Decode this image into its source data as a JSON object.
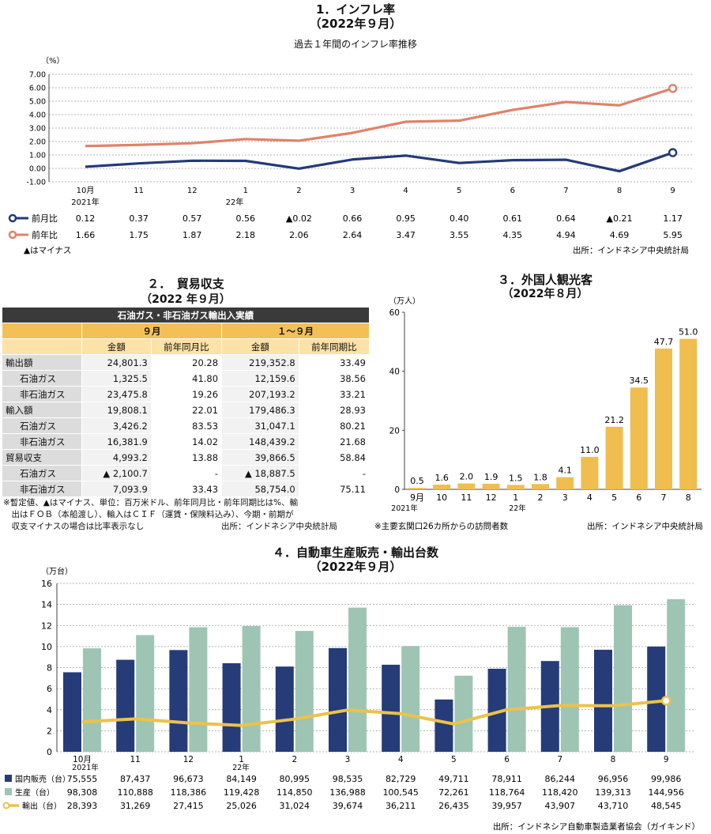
{
  "inflation": {
    "title": "1．インフレ率",
    "period": "（2022年９月）",
    "subtitle": "過去１年間のインフレ率推移",
    "unit": "（%）",
    "minus_note": "▲はマイナス",
    "source": "出所：インドネシア中央統計局",
    "year_2021": "2021年",
    "year_22": "22年",
    "chart_data": {
      "type": "line",
      "categories": [
        "10月",
        "11",
        "12",
        "1",
        "2",
        "3",
        "4",
        "5",
        "6",
        "7",
        "8",
        "9"
      ],
      "yticks": [
        "7.00",
        "6.00",
        "5.00",
        "4.00",
        "3.00",
        "2.00",
        "1.00",
        "0.00",
        "-1.00"
      ],
      "ylim": [
        -1,
        7
      ],
      "series": [
        {
          "name": "前月比",
          "color": "#243a78",
          "values": [
            0.12,
            0.37,
            0.57,
            0.56,
            -0.02,
            0.66,
            0.95,
            0.4,
            0.61,
            0.64,
            -0.21,
            1.17
          ],
          "labels": [
            "0.12",
            "0.37",
            "0.57",
            "0.56",
            "▲0.02",
            "0.66",
            "0.95",
            "0.40",
            "0.61",
            "0.64",
            "▲0.21",
            "1.17"
          ]
        },
        {
          "name": "前年比",
          "color": "#e0826a",
          "values": [
            1.66,
            1.75,
            1.87,
            2.18,
            2.06,
            2.64,
            3.47,
            3.55,
            4.35,
            4.94,
            4.69,
            5.95
          ],
          "labels": [
            "1.66",
            "1.75",
            "1.87",
            "2.18",
            "2.06",
            "2.64",
            "3.47",
            "3.55",
            "4.35",
            "4.94",
            "4.69",
            "5.95"
          ]
        }
      ]
    }
  },
  "trade": {
    "title": "２．　貿易収支",
    "period": "（2022 年９月）",
    "banner": "石油ガス・非石油ガス輸出入実績",
    "col_sep": "９月",
    "col_ytd": "１～９月",
    "h_amount": "金額",
    "h_mom": "前年同月比",
    "h_yoy": "前年同期比",
    "rows": [
      {
        "label": "輸出額",
        "indent": false,
        "v": [
          "24,801.3",
          "20.28",
          "219,352.8",
          "33.49"
        ]
      },
      {
        "label": "石油ガス",
        "indent": true,
        "v": [
          "1,325.5",
          "41.80",
          "12,159.6",
          "38.56"
        ]
      },
      {
        "label": "非石油ガス",
        "indent": true,
        "v": [
          "23,475.8",
          "19.26",
          "207,193.2",
          "33.21"
        ]
      },
      {
        "label": "輸入額",
        "indent": false,
        "v": [
          "19,808.1",
          "22.01",
          "179,486.3",
          "28.93"
        ]
      },
      {
        "label": "石油ガス",
        "indent": true,
        "v": [
          "3,426.2",
          "83.53",
          "31,047.1",
          "80.21"
        ]
      },
      {
        "label": "非石油ガス",
        "indent": true,
        "v": [
          "16,381.9",
          "14.02",
          "148,439.2",
          "21.68"
        ]
      },
      {
        "label": "貿易収支",
        "indent": false,
        "v": [
          "4,993.2",
          "13.88",
          "39,866.5",
          "58.84"
        ]
      },
      {
        "label": "石油ガス",
        "indent": true,
        "v": [
          "▲ 2,100.7",
          "-",
          "▲ 18,887.5",
          "-"
        ]
      },
      {
        "label": "非石油ガス",
        "indent": true,
        "v": [
          "7,093.9",
          "33.43",
          "58,754.0",
          "75.11"
        ]
      }
    ],
    "note1": "※暫定値、▲はマイナス、単位：百万米ドル、前年同月比・前年同期比は%、輸",
    "note2": "　出はＦＯＢ（本船渡し）、輸入はＣＩＦ（運賃・保険料込み）、今期・前期が",
    "note3": "　収支マイナスの場合は比率表示なし",
    "source": "出所：インドネシア中央統計局"
  },
  "tourists": {
    "title": "３．外国人観光客",
    "period": "（2022年８月）",
    "unit": "（万人）",
    "year_2021": "2021年",
    "year_22": "22年",
    "note": "※主要玄関口26カ所からの訪問者数",
    "source": "出所：インドネシア中央統計局",
    "chart_data": {
      "type": "bar",
      "categories": [
        "9月",
        "10",
        "11",
        "12",
        "1",
        "2",
        "3",
        "4",
        "5",
        "6",
        "7",
        "8"
      ],
      "values": [
        0.5,
        1.6,
        2.0,
        1.9,
        1.5,
        1.8,
        4.1,
        11.0,
        21.2,
        34.5,
        47.7,
        51.0
      ],
      "labels": [
        "0.5",
        "1.6",
        "2.0",
        "1.9",
        "1.5",
        "1.8",
        "4.1",
        "11.0",
        "21.2",
        "34.5",
        "47.7",
        "51.0"
      ],
      "yticks": [
        "60",
        "40",
        "20",
        "0"
      ],
      "ylim": [
        0,
        60
      ],
      "color": "#f0bd4f"
    }
  },
  "auto": {
    "title": "４．自動車生産販売・輸出台数",
    "period": "（2022年９月）",
    "unit": "（万台）",
    "year_2021": "2021年",
    "year_22": "22年",
    "source": "出所：インドネシア自動車製造業者協会（ガイキンド）",
    "chart_data": {
      "type": "bar",
      "categories": [
        "10月",
        "11",
        "12",
        "1",
        "2",
        "3",
        "4",
        "5",
        "6",
        "7",
        "8",
        "9"
      ],
      "yticks": [
        "16",
        "14",
        "12",
        "10",
        "8",
        "6",
        "4",
        "2",
        "0"
      ],
      "ylim": [
        0,
        16
      ],
      "series": [
        {
          "name": "国内販売（台）",
          "color": "#253c78",
          "values": [
            75555,
            87437,
            96673,
            84149,
            80995,
            98535,
            82729,
            49711,
            78911,
            86244,
            96956,
            99986
          ],
          "labels": [
            "75,555",
            "87,437",
            "96,673",
            "84,149",
            "80,995",
            "98,535",
            "82,729",
            "49,711",
            "78,911",
            "86,244",
            "96,956",
            "99,986"
          ]
        },
        {
          "name": "生産（台）",
          "color": "#9ec5b3",
          "values": [
            98308,
            110888,
            118386,
            119428,
            114850,
            136988,
            100545,
            72261,
            118764,
            118420,
            139313,
            144956
          ],
          "labels": [
            "98,308",
            "110,888",
            "118,386",
            "119,428",
            "114,850",
            "136,988",
            "100,545",
            "72,261",
            "118,764",
            "118,420",
            "139,313",
            "144,956"
          ]
        },
        {
          "name": "輸出（台）",
          "color": "#ecc24a",
          "values": [
            28393,
            31269,
            27415,
            25026,
            31024,
            39674,
            36211,
            26435,
            39957,
            43907,
            43710,
            48545
          ],
          "labels": [
            "28,393",
            "31,269",
            "27,415",
            "25,026",
            "31,024",
            "39,674",
            "36,211",
            "26,435",
            "39,957",
            "43,907",
            "43,710",
            "48,545"
          ]
        }
      ]
    }
  }
}
